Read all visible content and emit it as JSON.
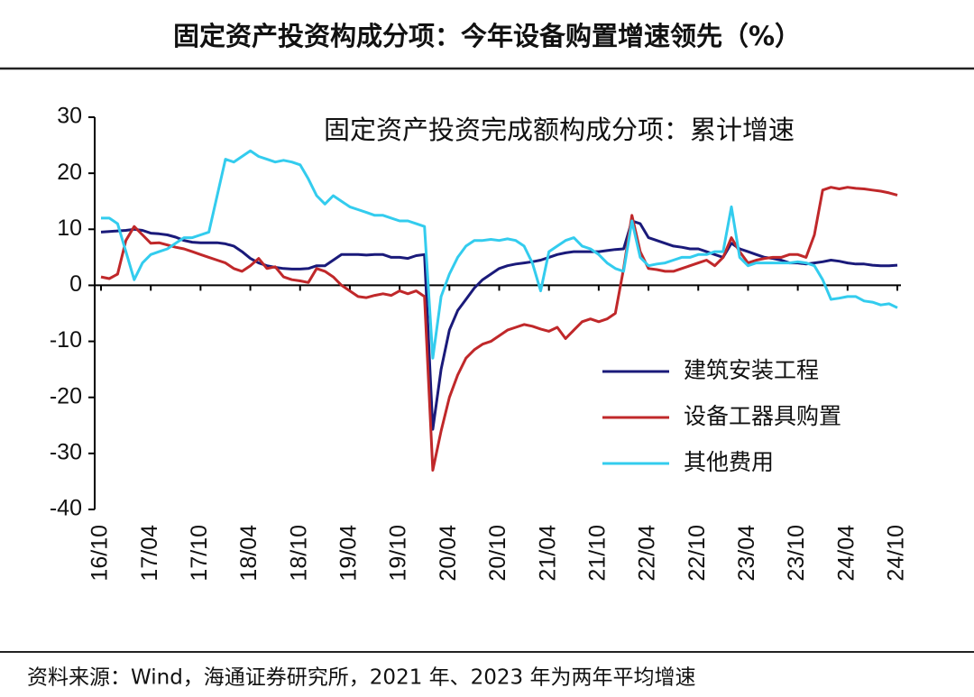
{
  "chart_data": {
    "type": "line",
    "title": "固定资产投资构成分项：今年设备购置增速领先（%）",
    "subtitle": "固定资产投资完成额构成分项：累计增速",
    "source": "资料来源：Wind，海通证券研究所，2021 年、2023 年为两年平均增速",
    "categories": [
      "16/10",
      null,
      null,
      null,
      null,
      null,
      "17/04",
      null,
      null,
      null,
      null,
      null,
      "17/10",
      null,
      null,
      null,
      null,
      null,
      "18/04",
      null,
      null,
      null,
      null,
      null,
      "18/10",
      null,
      null,
      null,
      null,
      null,
      "19/04",
      null,
      null,
      null,
      null,
      null,
      "19/10",
      null,
      null,
      null,
      null,
      null,
      "20/04",
      null,
      null,
      null,
      null,
      null,
      "20/10",
      null,
      null,
      null,
      null,
      null,
      "21/04",
      null,
      null,
      null,
      null,
      null,
      "21/10",
      null,
      null,
      null,
      null,
      null,
      "22/04",
      null,
      null,
      null,
      null,
      null,
      "22/10",
      null,
      null,
      null,
      null,
      null,
      "23/04",
      null,
      null,
      null,
      null,
      null,
      "23/10",
      null,
      null,
      null,
      null,
      null,
      "24/04",
      null,
      null,
      null,
      null,
      null,
      "24/10"
    ],
    "series": [
      {
        "name": "建筑安装工程",
        "color": "#1a1a7a",
        "values": [
          9.5,
          9.6,
          9.7,
          9.8,
          10,
          9.8,
          9.3,
          9.2,
          9,
          8.6,
          8,
          7.7,
          7.6,
          7.6,
          7.6,
          7.4,
          7,
          6,
          4.8,
          4,
          3.5,
          3.2,
          3,
          2.9,
          2.9,
          3,
          3.5,
          3.5,
          4.5,
          5.5,
          5.5,
          5.5,
          5.4,
          5.5,
          5.5,
          5,
          5,
          4.8,
          5.3,
          5.5,
          -25.7,
          -15,
          -8,
          -4.5,
          -2.5,
          -0.5,
          1,
          2,
          3,
          3.5,
          3.8,
          4,
          4.2,
          4.5,
          5,
          5.5,
          5.8,
          6,
          6,
          6,
          6,
          6.2,
          6.4,
          6.5,
          11.5,
          11,
          8.5,
          8,
          7.5,
          7,
          6.8,
          6.5,
          6.5,
          6,
          5.5,
          5,
          7.5,
          6.5,
          6,
          5.5,
          5,
          4.8,
          4.5,
          4,
          4,
          3.8,
          4,
          4.2,
          4.5,
          4.3,
          4,
          3.8,
          3.8,
          3.6,
          3.5,
          3.5,
          3.6
        ]
      },
      {
        "name": "设备工器具购置",
        "color": "#c0282a",
        "values": [
          1.5,
          1.2,
          2,
          8,
          10.5,
          9,
          7.5,
          7.6,
          7.2,
          6.8,
          6.5,
          6,
          5.5,
          5,
          4.5,
          4,
          3,
          2.5,
          3.5,
          4.8,
          3,
          3.3,
          1.5,
          1,
          0.8,
          0.5,
          3,
          2.5,
          1.5,
          0,
          -1,
          -2,
          -2.2,
          -1.8,
          -1.5,
          -1.8,
          -1,
          -1.5,
          -1,
          -2,
          -33,
          -26,
          -20,
          -16,
          -13,
          -11.5,
          -10.5,
          -10,
          -9,
          -8,
          -7.5,
          -7,
          -7.3,
          -7.8,
          -8.2,
          -7.5,
          -9.5,
          -8,
          -6.5,
          -6,
          -6.5,
          -6,
          -5,
          3,
          12.5,
          6,
          3,
          2.8,
          2.5,
          2.5,
          3,
          3.5,
          4,
          4.5,
          3.5,
          5,
          8.5,
          6,
          4,
          4.5,
          4.8,
          5,
          5,
          5.5,
          5.5,
          5,
          9,
          17,
          17.5,
          17.2,
          17.5,
          17.3,
          17.2,
          17,
          16.8,
          16.5,
          16.1
        ]
      },
      {
        "name": "其他费用",
        "color": "#33ccee",
        "values": [
          12,
          12,
          11,
          6,
          1,
          4,
          5.5,
          6,
          6.5,
          7.5,
          8.5,
          8.5,
          9,
          9.5,
          16,
          22.5,
          22,
          23,
          24,
          23,
          22.5,
          22,
          22.3,
          22,
          21.5,
          19,
          16,
          14.5,
          16,
          15,
          14,
          13.5,
          13,
          12.5,
          12.5,
          12,
          11.5,
          11.5,
          11,
          10.5,
          -13,
          -2,
          2,
          5,
          7,
          8,
          8,
          8.2,
          8,
          8.3,
          8,
          7,
          4,
          -1,
          6,
          7,
          8,
          8.5,
          7,
          6.5,
          5.5,
          4,
          3,
          2.5,
          11.5,
          5,
          3.5,
          3.8,
          4,
          4.5,
          5,
          5,
          5.5,
          5.5,
          6,
          6,
          14,
          5,
          3.5,
          4,
          4,
          4,
          4,
          4,
          4.2,
          4,
          3.5,
          1,
          -2.5,
          -2.3,
          -2,
          -2,
          -2.8,
          -3,
          -3.5,
          -3.3,
          -4
        ]
      }
    ],
    "ylim": [
      -40,
      30
    ],
    "yticks": [
      -40,
      -30,
      -20,
      -10,
      0,
      10,
      20,
      30
    ]
  }
}
